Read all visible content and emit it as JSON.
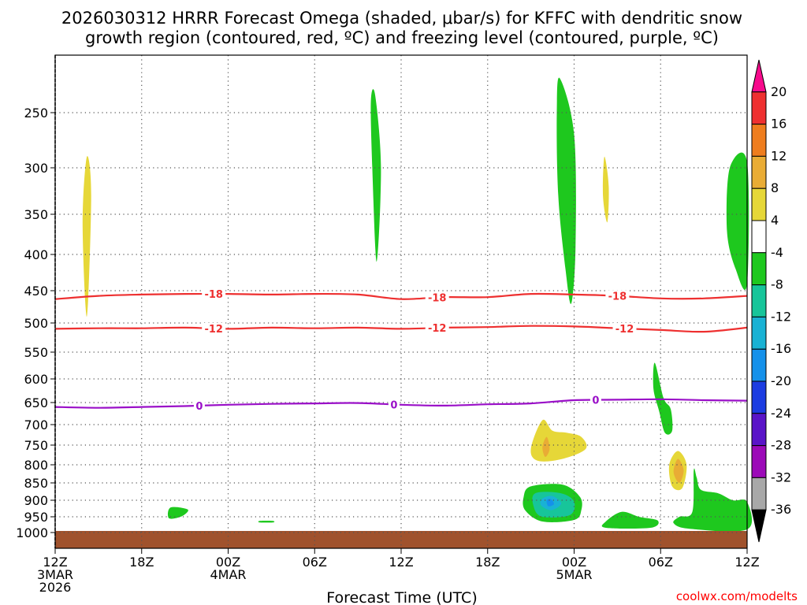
{
  "chart_data": {
    "type": "heatmap",
    "title_line1": "2026030312 HRRR Forecast Omega (shaded, μbar/s) for KFFC with dendritic snow",
    "title_line2": "growth region (contoured, red, ºC) and freezing level (contoured, purple, ºC)",
    "xlabel": "Forecast Time (UTC)",
    "credit": "coolwx.com/modelts",
    "x_range_hours": [
      0,
      48
    ],
    "y_range_mb": [
      1050,
      200
    ],
    "y_ticks": [
      250,
      300,
      350,
      400,
      450,
      500,
      550,
      600,
      650,
      700,
      750,
      800,
      850,
      900,
      950,
      1000
    ],
    "x_ticks": [
      {
        "hour": 0,
        "lines": [
          "12Z",
          "3MAR",
          "2026"
        ]
      },
      {
        "hour": 6,
        "lines": [
          "18Z"
        ]
      },
      {
        "hour": 12,
        "lines": [
          "00Z",
          "4MAR"
        ]
      },
      {
        "hour": 18,
        "lines": [
          "06Z"
        ]
      },
      {
        "hour": 24,
        "lines": [
          "12Z"
        ]
      },
      {
        "hour": 30,
        "lines": [
          "18Z"
        ]
      },
      {
        "hour": 36,
        "lines": [
          "00Z",
          "5MAR"
        ]
      },
      {
        "hour": 42,
        "lines": [
          "06Z"
        ]
      },
      {
        "hour": 48,
        "lines": [
          "12Z"
        ]
      }
    ],
    "colorbar": {
      "labels": [
        "20",
        "16",
        "12",
        "8",
        "4",
        "-4",
        "-8",
        "-12",
        "-16",
        "-20",
        "-24",
        "-28",
        "-32",
        "-36"
      ],
      "colors": [
        "#f70a8c",
        "#ee3030",
        "#ee7d1e",
        "#e9ac35",
        "#e6d738",
        "#ffffff",
        "#1ec81e",
        "#17c59a",
        "#19b2d4",
        "#1591ea",
        "#1c3ce1",
        "#5a14c8",
        "#9c0ab8",
        "#a8a8a8",
        "#000000"
      ]
    },
    "contours": [
      {
        "name": "-18 °C",
        "color": "#ee3030",
        "label": "-18",
        "points": [
          [
            0,
            463
          ],
          [
            3,
            458
          ],
          [
            6,
            456
          ],
          [
            9,
            455
          ],
          [
            12,
            455
          ],
          [
            15,
            456
          ],
          [
            18,
            455
          ],
          [
            21,
            456
          ],
          [
            24,
            463
          ],
          [
            27,
            460
          ],
          [
            30,
            460
          ],
          [
            33,
            455
          ],
          [
            36,
            456
          ],
          [
            39,
            458
          ],
          [
            42,
            462
          ],
          [
            45,
            462
          ],
          [
            48,
            458
          ]
        ],
        "label_hours": [
          11,
          26.5,
          39
        ]
      },
      {
        "name": "-12 °C",
        "color": "#ee3030",
        "label": "-12",
        "points": [
          [
            0,
            510
          ],
          [
            3,
            509
          ],
          [
            6,
            509
          ],
          [
            9,
            508
          ],
          [
            12,
            510
          ],
          [
            15,
            508
          ],
          [
            18,
            509
          ],
          [
            21,
            508
          ],
          [
            24,
            510
          ],
          [
            27,
            508
          ],
          [
            30,
            507
          ],
          [
            33,
            505
          ],
          [
            36,
            506
          ],
          [
            39,
            509
          ],
          [
            42,
            512
          ],
          [
            45,
            515
          ],
          [
            48,
            508
          ]
        ],
        "label_hours": [
          11,
          26.5,
          39.5
        ]
      },
      {
        "name": "0 °C freezing level",
        "color": "#9a10c8",
        "label": "0",
        "points": [
          [
            0,
            660
          ],
          [
            3,
            662
          ],
          [
            6,
            660
          ],
          [
            9,
            658
          ],
          [
            12,
            655
          ],
          [
            15,
            653
          ],
          [
            18,
            652
          ],
          [
            21,
            651
          ],
          [
            24,
            655
          ],
          [
            27,
            657
          ],
          [
            30,
            654
          ],
          [
            33,
            652
          ],
          [
            36,
            645
          ],
          [
            39,
            644
          ],
          [
            42,
            643
          ],
          [
            45,
            645
          ],
          [
            48,
            646
          ]
        ],
        "label_hours": [
          10,
          23.5,
          37.5
        ]
      }
    ],
    "regions": [
      {
        "level": "4",
        "color": "#e6d738",
        "points": [
          [
            2.2,
            290
          ],
          [
            2.5,
            330
          ],
          [
            2.2,
            490
          ],
          [
            1.9,
            360
          ]
        ]
      },
      {
        "level": "-4",
        "color": "#1ec81e",
        "points": [
          [
            22.2,
            235
          ],
          [
            22.6,
            300
          ],
          [
            22.3,
            410
          ],
          [
            22.0,
            300
          ],
          [
            21.9,
            240
          ]
        ]
      },
      {
        "level": "-4",
        "color": "#1ec81e",
        "points": [
          [
            35,
            220
          ],
          [
            36,
            270
          ],
          [
            36.1,
            390
          ],
          [
            35.8,
            470
          ],
          [
            35.4,
            420
          ],
          [
            34.9,
            330
          ],
          [
            34.8,
            250
          ]
        ]
      },
      {
        "level": "4",
        "color": "#e6d738",
        "points": [
          [
            38.1,
            290
          ],
          [
            38.4,
            320
          ],
          [
            38.3,
            360
          ],
          [
            38.0,
            330
          ]
        ]
      },
      {
        "level": "-4",
        "color": "#1ec81e",
        "points": [
          [
            48,
            295
          ],
          [
            46.8,
            300
          ],
          [
            46.6,
            370
          ],
          [
            47.2,
            420
          ],
          [
            48,
            440
          ]
        ]
      },
      {
        "level": "-4",
        "color": "#1ec81e",
        "points": [
          [
            8.0,
            922
          ],
          [
            9.2,
            928
          ],
          [
            8.8,
            948
          ],
          [
            7.9,
            955
          ]
        ]
      },
      {
        "level": "-4",
        "color": "#1ec81e",
        "points": [
          [
            14.2,
            963
          ],
          [
            15.1,
            963
          ],
          [
            15.1,
            968
          ],
          [
            14.2,
            968
          ]
        ]
      },
      {
        "level": "4",
        "color": "#e6d738",
        "points": [
          [
            33.8,
            690
          ],
          [
            34.5,
            715
          ],
          [
            35.5,
            720
          ],
          [
            36.5,
            730
          ],
          [
            36.8,
            760
          ],
          [
            35.2,
            785
          ],
          [
            33.5,
            790
          ],
          [
            33.0,
            760
          ]
        ]
      },
      {
        "level": "8",
        "color": "#e9ac35",
        "points": [
          [
            34.1,
            730
          ],
          [
            34.3,
            760
          ],
          [
            34.0,
            780
          ],
          [
            33.8,
            755
          ]
        ]
      },
      {
        "level": "-4",
        "color": "#1ec81e",
        "points": [
          [
            33.0,
            860
          ],
          [
            35.2,
            855
          ],
          [
            36.4,
            890
          ],
          [
            36.5,
            930
          ],
          [
            36.0,
            960
          ],
          [
            33.8,
            965
          ],
          [
            32.6,
            930
          ],
          [
            32.5,
            890
          ]
        ]
      },
      {
        "level": "-8",
        "color": "#17c59a",
        "points": [
          [
            33.3,
            880
          ],
          [
            35.1,
            880
          ],
          [
            36.0,
            905
          ],
          [
            35.7,
            945
          ],
          [
            33.8,
            950
          ],
          [
            33.2,
            920
          ]
        ]
      },
      {
        "level": "-12",
        "color": "#19b2d4",
        "points": [
          [
            33.8,
            895
          ],
          [
            34.5,
            888
          ],
          [
            35.1,
            910
          ],
          [
            34.4,
            930
          ],
          [
            33.7,
            915
          ]
        ]
      },
      {
        "level": "-16",
        "color": "#1591ea",
        "points": [
          [
            34.1,
            900
          ],
          [
            34.4,
            897
          ],
          [
            34.6,
            912
          ],
          [
            34.2,
            918
          ]
        ]
      },
      {
        "level": "-4",
        "color": "#1ec81e",
        "points": [
          [
            41.6,
            570
          ],
          [
            42.2,
            640
          ],
          [
            42.7,
            665
          ],
          [
            42.8,
            715
          ],
          [
            42.3,
            720
          ],
          [
            41.9,
            670
          ],
          [
            41.5,
            620
          ]
        ]
      },
      {
        "level": "4",
        "color": "#e6d738",
        "points": [
          [
            43.2,
            765
          ],
          [
            43.8,
            800
          ],
          [
            43.5,
            865
          ],
          [
            42.8,
            860
          ],
          [
            42.6,
            800
          ]
        ]
      },
      {
        "level": "8",
        "color": "#e9ac35",
        "points": [
          [
            43.2,
            785
          ],
          [
            43.6,
            815
          ],
          [
            43.3,
            850
          ],
          [
            42.9,
            820
          ]
        ]
      },
      {
        "level": "-4",
        "color": "#1ec81e",
        "points": [
          [
            38.2,
            965
          ],
          [
            39.3,
            935
          ],
          [
            40.5,
            950
          ],
          [
            41.8,
            962
          ],
          [
            41.3,
            985
          ],
          [
            38.2,
            985
          ]
        ]
      },
      {
        "level": "-4",
        "color": "#1ec81e",
        "points": [
          [
            44.3,
            815
          ],
          [
            44.5,
            835
          ],
          [
            44.8,
            870
          ],
          [
            46.0,
            880
          ],
          [
            47.0,
            900
          ],
          [
            48,
            905
          ],
          [
            48,
            990
          ],
          [
            44.0,
            988
          ],
          [
            42.9,
            970
          ],
          [
            43.3,
            950
          ],
          [
            44.2,
            935
          ]
        ]
      }
    ]
  }
}
